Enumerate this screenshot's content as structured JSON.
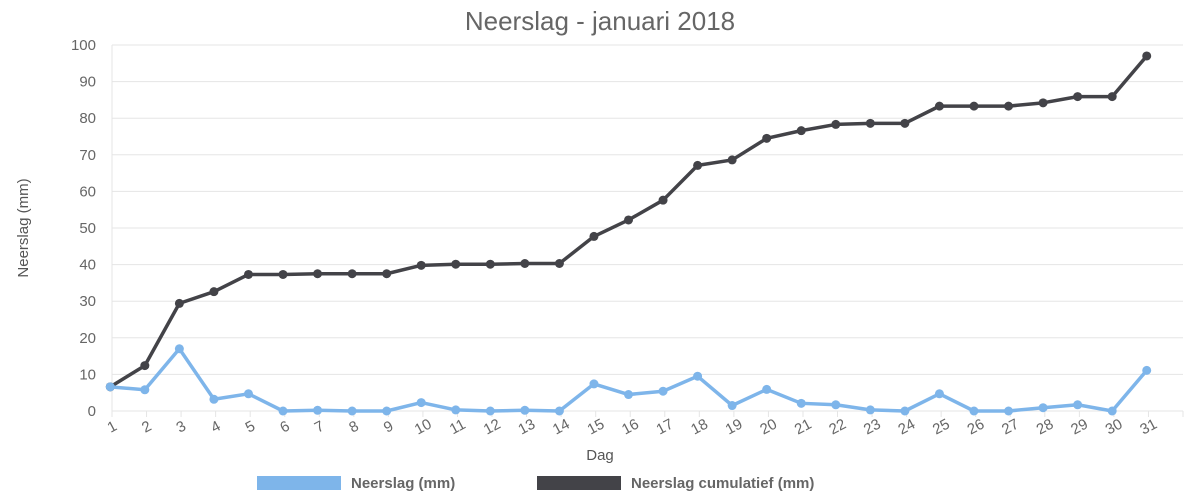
{
  "chart_data": {
    "type": "line",
    "title": "Neerslag - januari 2018",
    "xlabel": "Dag",
    "ylabel": "Neerslag (mm)",
    "ylim": [
      0,
      100
    ],
    "yticks": [
      0,
      10,
      20,
      30,
      40,
      50,
      60,
      70,
      80,
      90,
      100
    ],
    "grid": true,
    "legend_position": "bottom",
    "categories": [
      "1",
      "2",
      "3",
      "4",
      "5",
      "6",
      "7",
      "8",
      "9",
      "10",
      "11",
      "12",
      "13",
      "14",
      "15",
      "16",
      "17",
      "18",
      "19",
      "20",
      "21",
      "22",
      "23",
      "24",
      "25",
      "26",
      "27",
      "28",
      "29",
      "30",
      "31"
    ],
    "series": [
      {
        "name": "Neerslag (mm)",
        "color": "#7eb5ea",
        "values": [
          6.6,
          5.8,
          17.0,
          3.2,
          4.7,
          0.0,
          0.2,
          0.0,
          0.0,
          2.3,
          0.3,
          0.0,
          0.2,
          0.0,
          7.4,
          4.5,
          5.4,
          9.5,
          1.5,
          5.9,
          2.1,
          1.7,
          0.3,
          0.0,
          4.7,
          0.0,
          0.0,
          0.9,
          1.7,
          0.0,
          11.1
        ]
      },
      {
        "name": "Neerslag cumulatief (mm)",
        "color": "#434348",
        "values": [
          6.6,
          12.4,
          29.4,
          32.6,
          37.3,
          37.3,
          37.5,
          37.5,
          37.5,
          39.8,
          40.1,
          40.1,
          40.3,
          40.3,
          47.7,
          52.2,
          57.6,
          67.1,
          68.6,
          74.5,
          76.6,
          78.3,
          78.6,
          78.6,
          83.3,
          83.3,
          83.3,
          84.2,
          85.9,
          85.9,
          97.0
        ]
      }
    ]
  }
}
